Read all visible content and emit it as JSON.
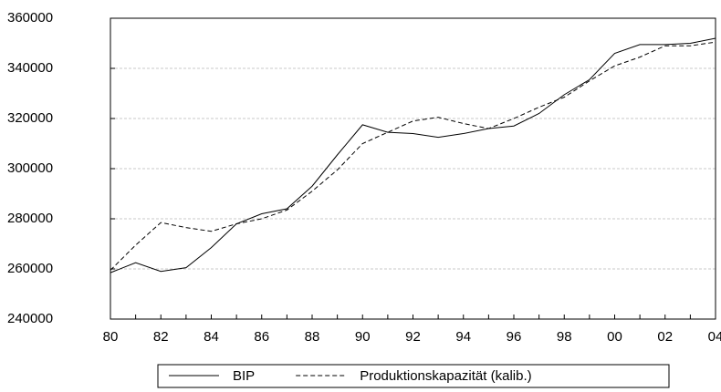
{
  "chart_data": {
    "type": "line",
    "categories": [
      "80",
      null,
      "82",
      null,
      "84",
      null,
      "86",
      null,
      "88",
      null,
      "90",
      null,
      "92",
      null,
      "94",
      null,
      "96",
      null,
      "98",
      null,
      "00",
      null,
      "02",
      null,
      "04"
    ],
    "series": [
      {
        "name": "BIP",
        "color": "#000000",
        "linestyle": "solid",
        "values": [
          258500,
          262500,
          259000,
          260500,
          268500,
          278000,
          282000,
          284000,
          293000,
          305500,
          317500,
          314500,
          314000,
          312500,
          314000,
          316000,
          317000,
          322000,
          329500,
          335500,
          346000,
          349500,
          349500,
          350000,
          352000
        ]
      },
      {
        "name": "Produktionskapazität (kalib.)",
        "color": "#000000",
        "linestyle": "dashed",
        "values": [
          259500,
          269500,
          278500,
          276500,
          275000,
          278000,
          280000,
          283500,
          291000,
          299500,
          310000,
          314500,
          319000,
          320500,
          318000,
          316000,
          320000,
          324500,
          328500,
          335000,
          341000,
          344500,
          349000,
          349000,
          350500
        ]
      }
    ],
    "ylim": [
      240000,
      360000
    ],
    "yticks": [
      240000,
      260000,
      280000,
      300000,
      320000,
      340000,
      360000
    ],
    "grid": true,
    "legend": "bottom"
  }
}
